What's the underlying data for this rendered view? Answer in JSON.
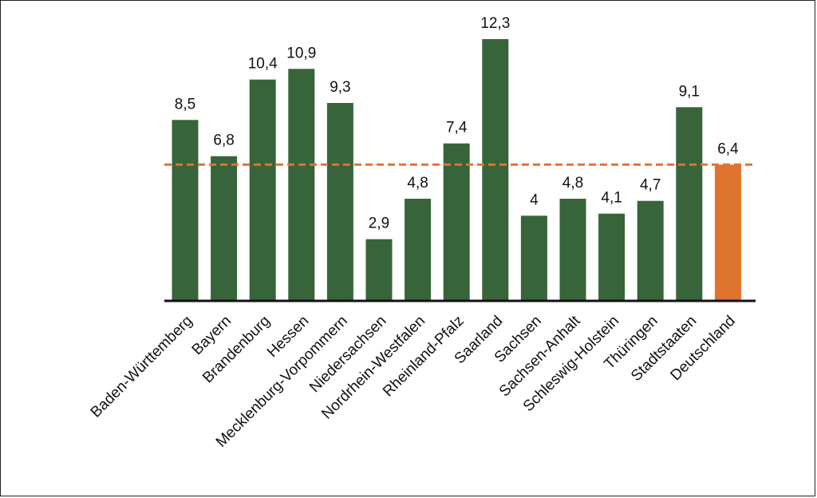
{
  "chart_data": {
    "type": "bar",
    "categories": [
      "Baden-Württemberg",
      "Bayern",
      "Brandenburg",
      "Hessen",
      "Mecklenburg-Vorpommern",
      "Niedersachsen",
      "Nordrhein-Westfalen",
      "Rheinland-Pfalz",
      "Saarland",
      "Sachsen",
      "Sachsen-Anhalt",
      "Schleswig-Holstein",
      "Thüringen",
      "Stadtstaaten",
      "Deutschland"
    ],
    "values": [
      8.5,
      6.8,
      10.4,
      10.9,
      9.3,
      2.9,
      4.8,
      7.4,
      12.3,
      4,
      4.8,
      4.1,
      4.7,
      9.1,
      6.4
    ],
    "value_labels": [
      "8,5",
      "6,8",
      "10,4",
      "10,9",
      "9,3",
      "2,9",
      "4,8",
      "7,4",
      "12,3",
      "4",
      "4,8",
      "4,1",
      "4,7",
      "9,1",
      "6,4"
    ],
    "highlight_index": 14,
    "reference_line": {
      "value": 6.4,
      "style": "dashed"
    },
    "title": "",
    "xlabel": "",
    "ylabel": "",
    "ylim": [
      0,
      12.3
    ],
    "grid": false,
    "legend": "none",
    "colors": {
      "bar": "#38643a",
      "highlight_bar": "#df742f",
      "reference_line": "#df742f",
      "axis": "#111111"
    }
  }
}
